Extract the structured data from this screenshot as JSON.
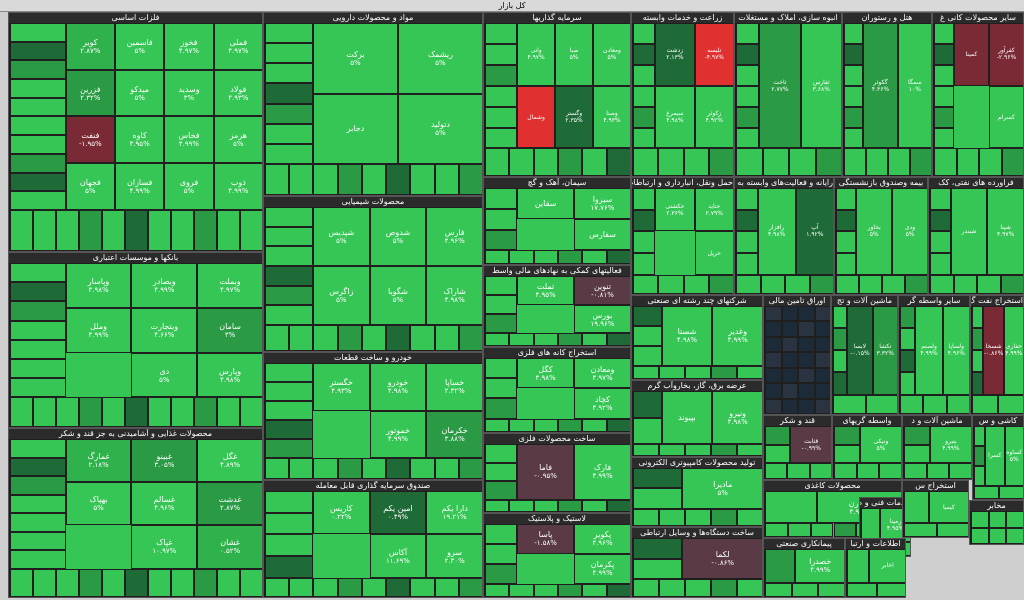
{
  "chart_data": {
    "type": "heatmap",
    "title": "کل بازار",
    "colors": {
      "bright_green": "#35c655",
      "green": "#2fb24b",
      "mid_green": "#2b9a44",
      "dark_green": "#1f6b37",
      "grey_dark": "#2a3340",
      "red": "#e03030",
      "dark_red": "#7a2a34",
      "maroon": "#5a3a44"
    },
    "sectors": [
      {
        "name": "فلزات اساسی",
        "cells": [
          {
            "name": "فملی",
            "change": "۴.۹۷%",
            "c": "bright_green"
          },
          {
            "name": "فخوز",
            "change": "۴.۹۷%",
            "c": "bright_green"
          },
          {
            "name": "فاسمین",
            "change": "۵%",
            "c": "bright_green"
          },
          {
            "name": "کویر",
            "change": "۲.۸۷%",
            "c": "green"
          },
          {
            "name": "فولاد",
            "change": "۴.۹۳%",
            "c": "bright_green"
          },
          {
            "name": "وسدید",
            "change": "۳%",
            "c": "bright_green"
          },
          {
            "name": "میدکو",
            "change": "۵%",
            "c": "bright_green"
          },
          {
            "name": "فزرین",
            "change": "۲.۳۲%",
            "c": "mid_green"
          },
          {
            "name": "هرمز",
            "change": "۵%",
            "c": "bright_green"
          },
          {
            "name": "فخاس",
            "change": "۴.۹۹%",
            "c": "bright_green"
          },
          {
            "name": "کاوه",
            "change": "۴.۹۵%",
            "c": "bright_green"
          },
          {
            "name": "فنفت",
            "change": "-۱.۹۵%",
            "c": "dark_red"
          },
          {
            "name": "ذوب",
            "change": "۴.۹۹%",
            "c": "bright_green"
          },
          {
            "name": "فروی",
            "change": "۵%",
            "c": "bright_green"
          },
          {
            "name": "فسازان",
            "change": "۴.۹۹%",
            "c": "bright_green"
          },
          {
            "name": "فجهان",
            "change": "۵%",
            "c": "bright_green"
          }
        ]
      },
      {
        "name": "بانکها و موسسات اعتباری",
        "cells": [
          {
            "name": "وبملت",
            "change": "۴.۹۷%",
            "c": "bright_green"
          },
          {
            "name": "وبصادر",
            "change": "۴.۹۹%",
            "c": "bright_green"
          },
          {
            "name": "وپاسار",
            "change": "۴.۹۸%",
            "c": "bright_green"
          },
          {
            "name": "سامان",
            "change": "۳%",
            "c": "mid_green"
          },
          {
            "name": "وبتجارت",
            "change": "۴.۶۶%",
            "c": "bright_green"
          },
          {
            "name": "وملل",
            "change": "۴.۹۹%",
            "c": "bright_green"
          },
          {
            "name": "وپارس",
            "change": "۴.۹۸%",
            "c": "bright_green"
          },
          {
            "name": "دی",
            "change": "۵%",
            "c": "bright_green"
          }
        ]
      },
      {
        "name": "محصولات غذایی و آشامیدنی به جز قند و شکر",
        "cells": [
          {
            "name": "غگل",
            "change": "۴.۸۹%",
            "c": "bright_green"
          },
          {
            "name": "غبینو",
            "change": "۳.۰۵%",
            "c": "mid_green"
          },
          {
            "name": "غمارگ",
            "change": "۲.۱۸%",
            "c": "green"
          },
          {
            "name": "غدشت",
            "change": "۲.۸۷%",
            "c": "mid_green"
          },
          {
            "name": "غسالم",
            "change": "۴.۹۶%",
            "c": "bright_green"
          },
          {
            "name": "بهپاک",
            "change": "۵%",
            "c": "bright_green"
          },
          {
            "name": "غشان",
            "change": "۰.۵۲%",
            "c": "green"
          },
          {
            "name": "غپاک",
            "change": "۱۰.۹۷%",
            "c": "bright_green"
          }
        ]
      },
      {
        "name": "مواد و محصولات دارویی",
        "cells": [
          {
            "name": "ریشمک",
            "change": "۵%",
            "c": "bright_green"
          },
          {
            "name": "برکت",
            "change": "۵%",
            "c": "bright_green"
          },
          {
            "name": "دتولید",
            "change": "۵%",
            "c": "bright_green"
          },
          {
            "name": "دجابر",
            "change": "",
            "c": "bright_green"
          }
        ]
      },
      {
        "name": "محصولات شیمیایی",
        "cells": [
          {
            "name": "فارس",
            "change": "۴.۹۶%",
            "c": "bright_green"
          },
          {
            "name": "شدوص",
            "change": "۵%",
            "c": "bright_green"
          },
          {
            "name": "شپدیس",
            "change": "۵%",
            "c": "bright_green"
          },
          {
            "name": "شاراک",
            "change": "۴.۹۸%",
            "c": "bright_green"
          },
          {
            "name": "شگویا",
            "change": "۵%",
            "c": "bright_green"
          },
          {
            "name": "زاگرس",
            "change": "۵%",
            "c": "bright_green"
          }
        ]
      },
      {
        "name": "خودرو و ساخت قطعات",
        "cells": [
          {
            "name": "خساپا",
            "change": "۲.۳۲%",
            "c": "bright_green"
          },
          {
            "name": "خودرو",
            "change": "۴.۹۸%",
            "c": "bright_green"
          },
          {
            "name": "خگستر",
            "change": "۴.۹۳%",
            "c": "bright_green"
          },
          {
            "name": "خکرمان",
            "change": "۳.۸۸%",
            "c": "mid_green"
          },
          {
            "name": "خموتور",
            "change": "۴.۹۹%",
            "c": "bright_green"
          }
        ]
      },
      {
        "name": "صندوق سرمایه گذاری قابل معامله",
        "cells": [
          {
            "name": "دارا یکم",
            "change": "۱۹.۲۱%",
            "c": "bright_green"
          },
          {
            "name": "امین یکم",
            "change": "۰.۴۹%",
            "c": "dark_green"
          },
          {
            "name": "کاریس",
            "change": "۰.۲۲%",
            "c": "bright_green"
          },
          {
            "name": "سرو",
            "change": "۲.۳۰%",
            "c": "bright_green"
          },
          {
            "name": "آکاس",
            "change": "۱۱.۶۹%",
            "c": "bright_green"
          }
        ]
      },
      {
        "name": "سرمایه گذاریها",
        "cells": [
          {
            "name": "ومعادن",
            "change": "۵%",
            "c": "bright_green"
          },
          {
            "name": "صبا",
            "change": "۵%",
            "c": "bright_green"
          },
          {
            "name": "واتی",
            "change": "۴.۹۷%",
            "c": "bright_green"
          },
          {
            "name": "وصنا",
            "change": "۴.۹۳%",
            "c": "bright_green"
          },
          {
            "name": "وگستر",
            "change": "۲.۳۵%",
            "c": "dark_green"
          },
          {
            "name": "وشمال",
            "change": "",
            "c": "red"
          }
        ]
      },
      {
        "name": "سیمان، آهک و گچ",
        "cells": [
          {
            "name": "سیزوا",
            "change": "۱۷.۷۶%",
            "c": "bright_green"
          },
          {
            "name": "سقاین",
            "change": "",
            "c": "bright_green"
          },
          {
            "name": "سفارس",
            "change": "",
            "c": "bright_green"
          }
        ]
      },
      {
        "name": "فعالیتهای کمکی به نهادهای مالی واسط",
        "cells": [
          {
            "name": "تنوین",
            "change": "-۰.۸۱%",
            "c": "maroon"
          },
          {
            "name": "تملت",
            "change": "۴.۹۵%",
            "c": "bright_green"
          },
          {
            "name": "بورس",
            "change": "۱۹.۹۶%",
            "c": "bright_green"
          }
        ]
      },
      {
        "name": "استخراج کانه های فلزی",
        "cells": [
          {
            "name": "ومعادن",
            "change": "۴.۹۷%",
            "c": "bright_green"
          },
          {
            "name": "کگل",
            "change": "۴.۹۸%",
            "c": "bright_green"
          },
          {
            "name": "کچاد",
            "change": "۴.۹۲%",
            "c": "bright_green"
          }
        ]
      },
      {
        "name": "ساخت محصولات فلزی",
        "cells": [
          {
            "name": "فارک",
            "change": "۴.۹۹%",
            "c": "bright_green"
          },
          {
            "name": "فاما",
            "change": "-۰.۹۵%",
            "c": "maroon"
          }
        ]
      },
      {
        "name": "لاستیک و پلاستیک",
        "cells": [
          {
            "name": "پکویر",
            "change": "۴.۹۶%",
            "c": "bright_green"
          },
          {
            "name": "پاسا",
            "change": "-۱.۵۸%",
            "c": "maroon"
          },
          {
            "name": "پکرمان",
            "change": "۴.۹۹%",
            "c": "bright_green"
          }
        ]
      },
      {
        "name": "زراعت و خدمات وابسته",
        "cells": [
          {
            "name": "تلیسه",
            "change": "-۴.۹۷%",
            "c": "red"
          },
          {
            "name": "زدشت",
            "change": "۲.۱۳%",
            "c": "dark_green"
          },
          {
            "name": "زکوثر",
            "change": "۴.۹۲%",
            "c": "bright_green"
          },
          {
            "name": "سیمرغ",
            "change": "۴.۹۸%",
            "c": "bright_green"
          }
        ]
      },
      {
        "name": "انبوه سازی، املاک و مستغلات",
        "cells": [
          {
            "name": "ثفارس",
            "change": "۳.۶۸%",
            "c": "bright_green"
          },
          {
            "name": "ثاخت",
            "change": "۲.۷۷%",
            "c": "mid_green"
          }
        ]
      },
      {
        "name": "هتل و رستوران",
        "cells": [
          {
            "name": "سمگا",
            "change": "۱۰%",
            "c": "bright_green"
          },
          {
            "name": "گکوثر",
            "change": "۴.۳۶%",
            "c": "mid_green"
          }
        ]
      },
      {
        "name": "سایر محصولات کانی غ",
        "cells": [
          {
            "name": "کفرآور",
            "change": "-۲.۹۶%",
            "c": "dark_red"
          },
          {
            "name": "کمینا",
            "change": "",
            "c": "dark_red"
          },
          {
            "name": "کسرام",
            "change": "",
            "c": "bright_green"
          }
        ]
      },
      {
        "name": "حمل ونقل، انبارداری و ارتباطات",
        "cells": [
          {
            "name": "حتاید",
            "change": "۲.۷۹%",
            "c": "bright_green"
          },
          {
            "name": "حکشتی",
            "change": "۲.۳۶%",
            "c": "bright_green"
          },
          {
            "name": "حریل",
            "change": "",
            "c": "bright_green"
          }
        ]
      },
      {
        "name": "رایانه و فعالیت‌های وابسته به آن",
        "cells": [
          {
            "name": "آپ",
            "change": "۱.۹۲%",
            "c": "dark_green"
          },
          {
            "name": "رافزار",
            "change": "۴.۹۸%",
            "c": "bright_green"
          }
        ]
      },
      {
        "name": "بیمه وصندوق بازنشستگی",
        "cells": [
          {
            "name": "ودی",
            "change": "۵%",
            "c": "bright_green"
          },
          {
            "name": "بخاور",
            "change": "۵%",
            "c": "bright_green"
          }
        ]
      },
      {
        "name": "فراورده های نفتی، کک",
        "cells": [
          {
            "name": "شپنا",
            "change": "۴.۹۷%",
            "c": "bright_green"
          },
          {
            "name": "شبندر",
            "change": "",
            "c": "bright_green"
          }
        ]
      },
      {
        "name": "شرکتهای چند رشته ای صنعتی",
        "cells": [
          {
            "name": "وغدیر",
            "change": "۴.۹۹%",
            "c": "bright_green"
          },
          {
            "name": "شستا",
            "change": "۴.۹۸%",
            "c": "bright_green"
          }
        ]
      },
      {
        "name": "عرضه برق، گاز، بخاروآب گرم",
        "cells": [
          {
            "name": "ونیرو",
            "change": "۴.۹۸%",
            "c": "bright_green"
          },
          {
            "name": "بپیوند",
            "change": "",
            "c": "bright_green"
          }
        ]
      },
      {
        "name": "تولید محصولات کامپیوتری الکترونی",
        "cells": [
          {
            "name": "مادیرا",
            "change": "۵%",
            "c": "bright_green"
          }
        ]
      },
      {
        "name": "ساخت دستگاه‌ها و وسایل ارتباطی",
        "cells": [
          {
            "name": "لکما",
            "change": "-۰.۸۶%",
            "c": "maroon"
          }
        ]
      },
      {
        "name": "اوراق تامین مالی",
        "cells": []
      },
      {
        "name": "ماشین آلات و تج",
        "cells": [
          {
            "name": "تکشا",
            "change": "۳.۳۲%",
            "c": "mid_green"
          },
          {
            "name": "لابسا",
            "change": "-۰.۱۵%",
            "c": "dark_green"
          }
        ]
      },
      {
        "name": "سایر واسطه گر",
        "cells": [
          {
            "name": "ولساپا",
            "change": "۴.۹۶%",
            "c": "bright_green"
          },
          {
            "name": "ولصنم",
            "change": "۴.۹۹%",
            "c": "bright_green"
          }
        ]
      },
      {
        "name": "استخراج نفت گ",
        "cells": [
          {
            "name": "حفاری",
            "change": "۴.۹۹%",
            "c": "bright_green"
          },
          {
            "name": "شسخا",
            "change": "-۰.۸۶%",
            "c": "dark_red"
          }
        ]
      },
      {
        "name": "قند و شکر",
        "cells": [
          {
            "name": "قثابت",
            "change": "-۰.۹۹%",
            "c": "maroon"
          }
        ]
      },
      {
        "name": "واسطه گریهای",
        "cells": [
          {
            "name": "ونیکی",
            "change": "۵%",
            "c": "bright_green"
          }
        ]
      },
      {
        "name": "ماشین آلات و د",
        "cells": [
          {
            "name": "بنیرو",
            "change": "۴.۹۹%",
            "c": "bright_green"
          }
        ]
      },
      {
        "name": "محصولات کاغذی",
        "cells": [
          {
            "name": "چکارن",
            "change": "۴.۹۹%",
            "c": "bright_green"
          }
        ]
      },
      {
        "name": "پیمانکاری صنعتی",
        "cells": [
          {
            "name": "خصدرا",
            "change": "۴.۹۹%",
            "c": "bright_green"
          }
        ]
      },
      {
        "name": "خدمات فنی و م",
        "cells": [
          {
            "name": "رمپنا",
            "change": "۴.۹۵%",
            "c": "bright_green"
          }
        ]
      },
      {
        "name": "اطلاعات و ارتبا",
        "cells": [
          {
            "name": "اخابر",
            "change": "",
            "c": "bright_green"
          }
        ]
      },
      {
        "name": "کاشی و س",
        "cells": [
          {
            "name": "کساوه",
            "change": "۵%",
            "c": "bright_green"
          },
          {
            "name": "کسرا",
            "change": "",
            "c": "bright_green"
          }
        ]
      },
      {
        "name": "استخراج س",
        "cells": [
          {
            "name": "کیمیا",
            "change": "",
            "c": "bright_green"
          }
        ]
      },
      {
        "name": "مخابر",
        "cells": []
      }
    ]
  }
}
